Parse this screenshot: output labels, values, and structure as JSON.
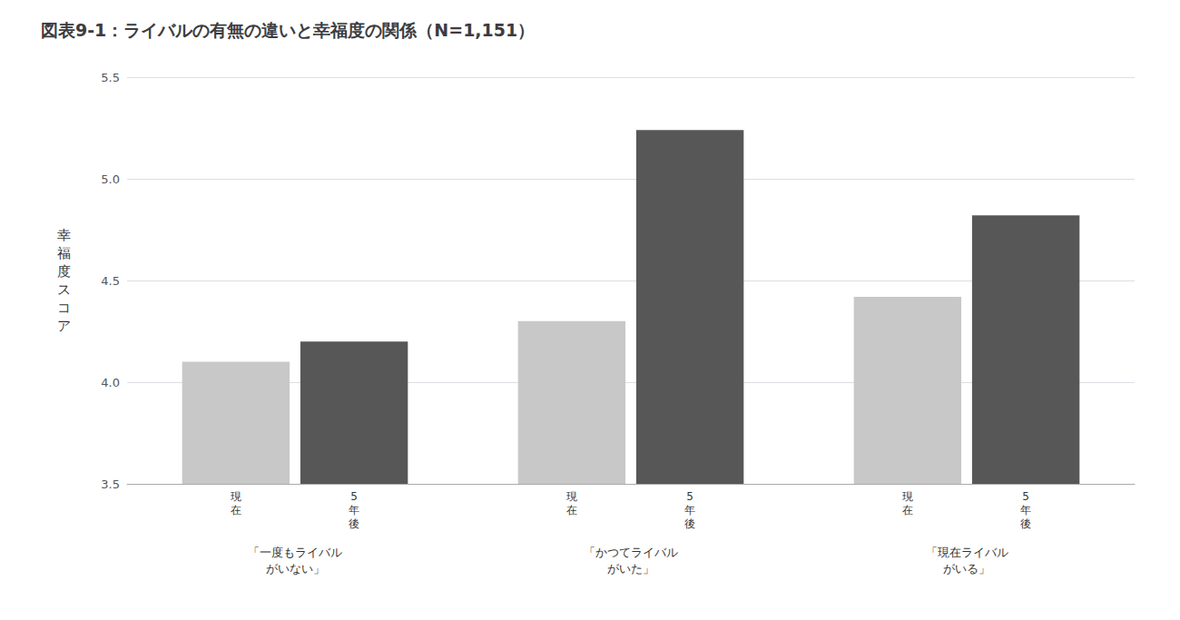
{
  "chart_data": {
    "type": "bar",
    "title": "図表9-1：ライバルの有無の違いと幸福度の関係（N=1,151）",
    "ylabel": "幸福度スコア",
    "categories": [
      "「一度もライバル\nがいない」",
      "「かつてライバル\nがいた」",
      "「現在ライバル\nがいる」"
    ],
    "series": [
      {
        "name": "現\n在",
        "color": "#c8c8c8",
        "values": [
          4.1,
          4.3,
          4.42
        ]
      },
      {
        "name": "5\n年\n後",
        "color": "#575757",
        "values": [
          4.2,
          5.24,
          4.82
        ]
      }
    ],
    "ylim": [
      3.5,
      5.5
    ],
    "yticks": [
      3.5,
      {
        "value": 4.0,
        "label": "4.0"
      },
      4.5,
      {
        "value": 5.0,
        "label": "5.0"
      },
      5.5
    ],
    "grid": true
  }
}
